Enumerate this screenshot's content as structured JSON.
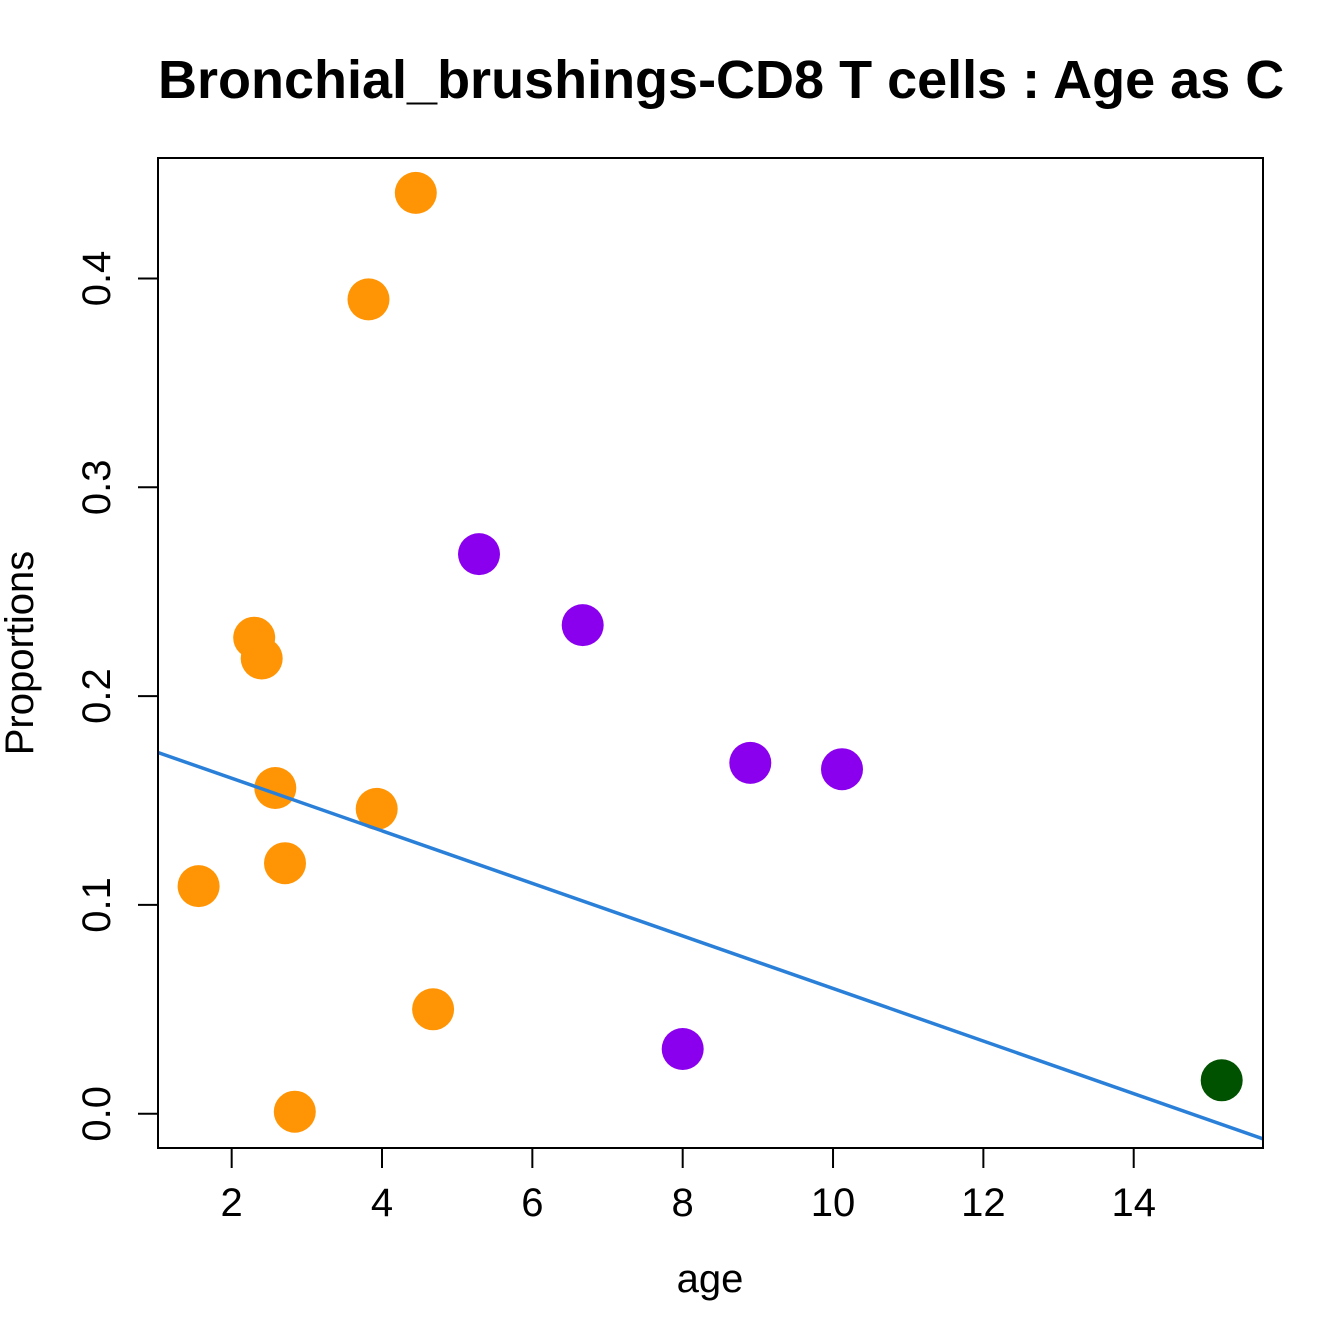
{
  "chart_data": {
    "type": "scatter",
    "title": "Bronchial_brushings-CD8 T cells : Age as C",
    "xlabel": "age",
    "ylabel": "Proportions",
    "xlim": [
      1.02,
      15.72
    ],
    "ylim": [
      -0.0164,
      0.4577
    ],
    "xticks": [
      2,
      4,
      6,
      8,
      10,
      12,
      14
    ],
    "yticks": [
      0.0,
      0.1,
      0.2,
      0.3,
      0.4
    ],
    "xtick_labels": [
      "2",
      "4",
      "6",
      "8",
      "10",
      "12",
      "14"
    ],
    "ytick_labels": [
      "0.0",
      "0.1",
      "0.2",
      "0.3",
      "0.4"
    ],
    "grid": false,
    "legend": "none",
    "colors": {
      "orange": "#ff9505",
      "purple": "#8a00ee",
      "green": "#005200",
      "fit": "#2a80d8"
    },
    "points": [
      {
        "x": 4.45,
        "y": 0.441,
        "color": "orange"
      },
      {
        "x": 3.82,
        "y": 0.39,
        "color": "orange"
      },
      {
        "x": 2.3,
        "y": 0.228,
        "color": "orange"
      },
      {
        "x": 2.4,
        "y": 0.218,
        "color": "orange"
      },
      {
        "x": 2.58,
        "y": 0.156,
        "color": "orange"
      },
      {
        "x": 3.93,
        "y": 0.146,
        "color": "orange"
      },
      {
        "x": 2.71,
        "y": 0.12,
        "color": "orange"
      },
      {
        "x": 1.56,
        "y": 0.109,
        "color": "orange"
      },
      {
        "x": 4.68,
        "y": 0.05,
        "color": "orange"
      },
      {
        "x": 2.84,
        "y": 0.001,
        "color": "orange"
      },
      {
        "x": 5.29,
        "y": 0.268,
        "color": "purple"
      },
      {
        "x": 6.67,
        "y": 0.234,
        "color": "purple"
      },
      {
        "x": 8.9,
        "y": 0.168,
        "color": "purple"
      },
      {
        "x": 10.12,
        "y": 0.165,
        "color": "purple"
      },
      {
        "x": 8.0,
        "y": 0.031,
        "color": "purple"
      },
      {
        "x": 15.17,
        "y": 0.016,
        "color": "green"
      }
    ],
    "fit_line": {
      "x": [
        1.02,
        15.72
      ],
      "y": [
        0.173,
        -0.012
      ],
      "color": "fit"
    }
  }
}
